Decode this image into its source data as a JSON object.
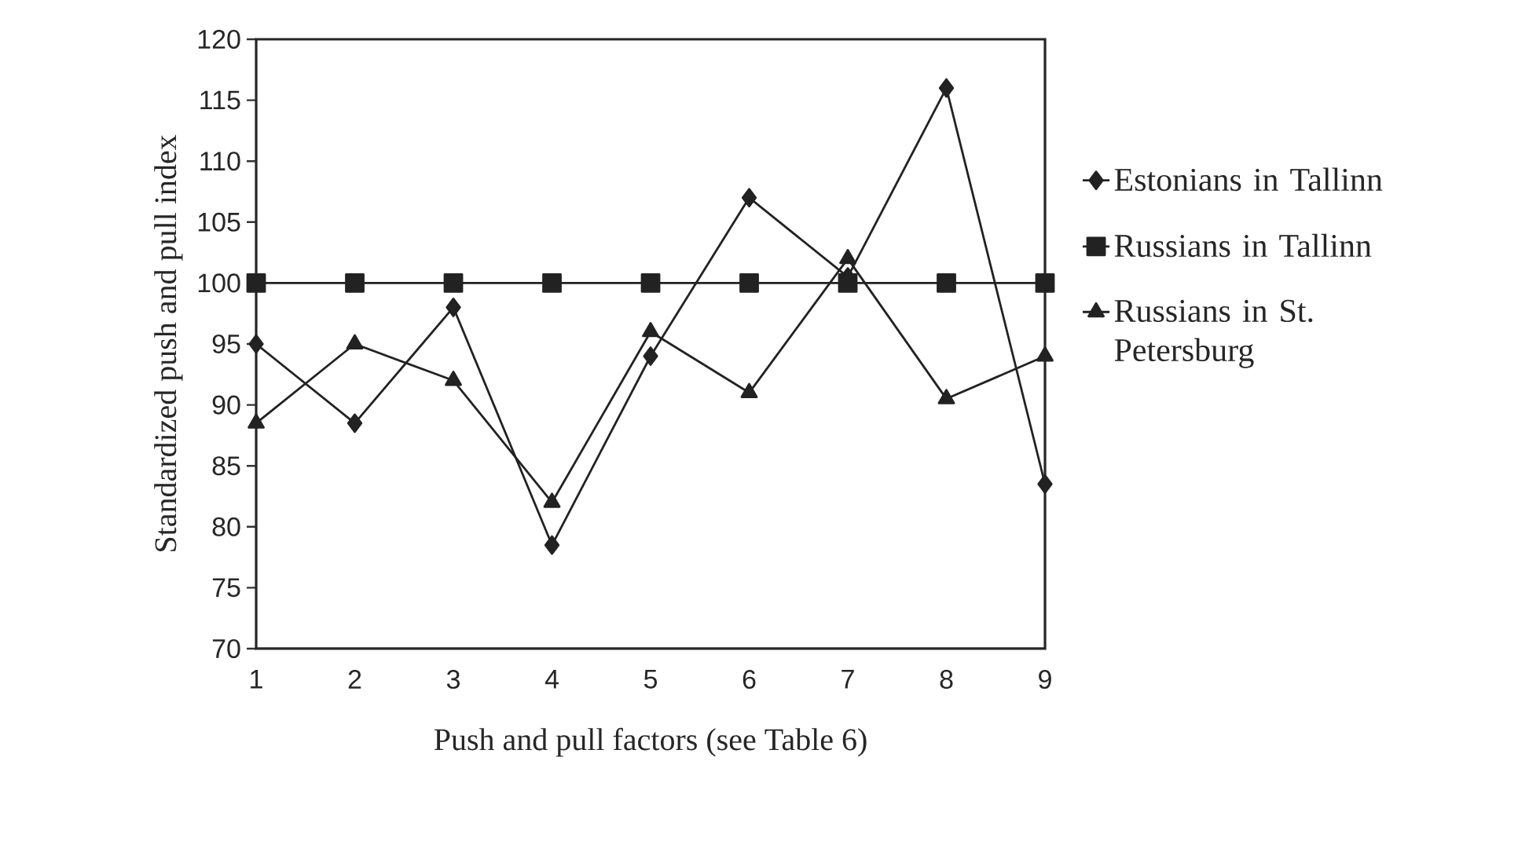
{
  "chart_data": {
    "type": "line",
    "xlabel": "Push and pull factors (see Table 6)",
    "ylabel": "Standardized push and pull index",
    "categories": [
      "1",
      "2",
      "3",
      "4",
      "5",
      "6",
      "7",
      "8",
      "9"
    ],
    "series": [
      {
        "name": "Estonians in Tallinn",
        "color": "#222222",
        "marker": "diamond",
        "values": [
          95,
          88.5,
          98,
          78.5,
          94,
          107,
          100.5,
          116,
          83.5
        ]
      },
      {
        "name": "Russians in Tallinn",
        "color": "#222222",
        "marker": "square",
        "values": [
          100,
          100,
          100,
          100,
          100,
          100,
          100,
          100,
          100
        ]
      },
      {
        "name": "Russians in St. Petersburg",
        "color": "#222222",
        "marker": "triangle",
        "values": [
          88.5,
          95,
          92,
          82,
          96,
          91,
          102,
          90.5,
          94
        ]
      }
    ],
    "ylim": [
      70,
      120
    ],
    "yticks": [
      70,
      75,
      80,
      85,
      90,
      95,
      100,
      105,
      110,
      115,
      120
    ],
    "grid": false,
    "legend": "right",
    "line_style": "solid"
  }
}
